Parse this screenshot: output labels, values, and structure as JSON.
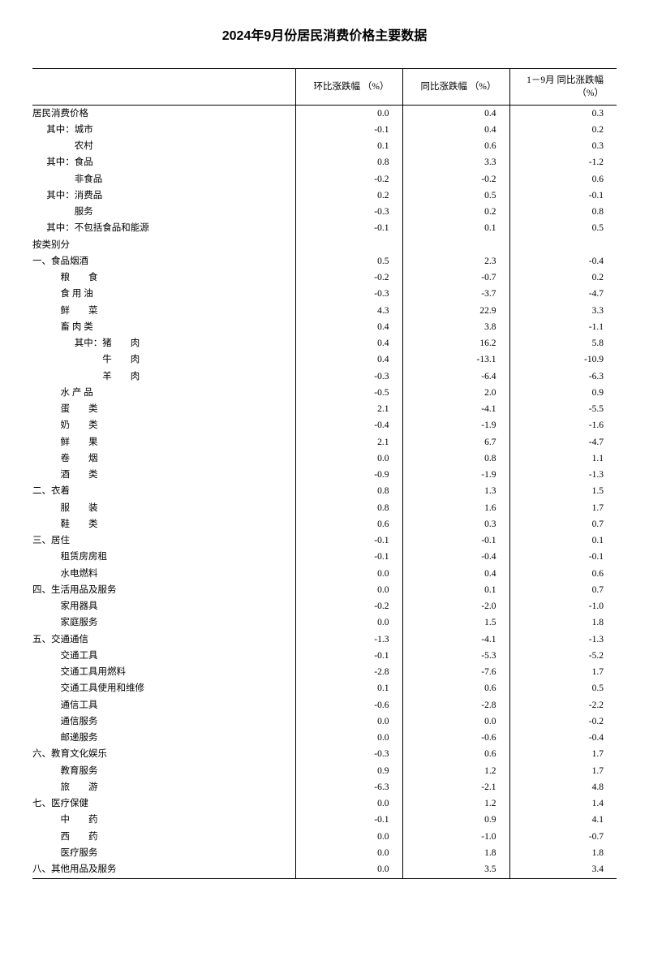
{
  "title": "2024年9月份居民消费价格主要数据",
  "columns": {
    "label": "",
    "mom": "环比涨跌幅\n（%）",
    "yoy": "同比涨跌幅\n（%）",
    "ytd": "1－9月\n同比涨跌幅\n（%）"
  },
  "rows": [
    {
      "label": "居民消费价格",
      "indent": 0,
      "mom": "0.0",
      "yoy": "0.4",
      "ytd": "0.3"
    },
    {
      "label": "其中：城市",
      "indent": 1,
      "mom": "-0.1",
      "yoy": "0.4",
      "ytd": "0.2"
    },
    {
      "label": "农村",
      "indent": 3,
      "mom": "0.1",
      "yoy": "0.6",
      "ytd": "0.3"
    },
    {
      "label": "其中：食品",
      "indent": 1,
      "mom": "0.8",
      "yoy": "3.3",
      "ytd": "-1.2"
    },
    {
      "label": "非食品",
      "indent": 3,
      "mom": "-0.2",
      "yoy": "-0.2",
      "ytd": "0.6"
    },
    {
      "label": "其中：消费品",
      "indent": 1,
      "mom": "0.2",
      "yoy": "0.5",
      "ytd": "-0.1"
    },
    {
      "label": "服务",
      "indent": 3,
      "mom": "-0.3",
      "yoy": "0.2",
      "ytd": "0.8"
    },
    {
      "label": "其中：不包括食品和能源",
      "indent": 1,
      "mom": "-0.1",
      "yoy": "0.1",
      "ytd": "0.5"
    },
    {
      "label": "按类别分",
      "indent": 0,
      "mom": "",
      "yoy": "",
      "ytd": ""
    },
    {
      "label": "一、食品烟酒",
      "indent": 0,
      "mom": "0.5",
      "yoy": "2.3",
      "ytd": "-0.4"
    },
    {
      "label": "粮　　食",
      "indent": 2,
      "mom": "-0.2",
      "yoy": "-0.7",
      "ytd": "0.2"
    },
    {
      "label": "食 用 油",
      "indent": 2,
      "mom": "-0.3",
      "yoy": "-3.7",
      "ytd": "-4.7"
    },
    {
      "label": "鲜　　菜",
      "indent": 2,
      "mom": "4.3",
      "yoy": "22.9",
      "ytd": "3.3"
    },
    {
      "label": "畜 肉 类",
      "indent": 2,
      "mom": "0.4",
      "yoy": "3.8",
      "ytd": "-1.1"
    },
    {
      "label": "其中：猪　　肉",
      "indent": 3,
      "mom": "0.4",
      "yoy": "16.2",
      "ytd": "5.8"
    },
    {
      "label": "牛　　肉",
      "indent": 5,
      "mom": "0.4",
      "yoy": "-13.1",
      "ytd": "-10.9"
    },
    {
      "label": "羊　　肉",
      "indent": 5,
      "mom": "-0.3",
      "yoy": "-6.4",
      "ytd": "-6.3"
    },
    {
      "label": "水 产 品",
      "indent": 2,
      "mom": "-0.5",
      "yoy": "2.0",
      "ytd": "0.9"
    },
    {
      "label": "蛋　　类",
      "indent": 2,
      "mom": "2.1",
      "yoy": "-4.1",
      "ytd": "-5.5"
    },
    {
      "label": "奶　　类",
      "indent": 2,
      "mom": "-0.4",
      "yoy": "-1.9",
      "ytd": "-1.6"
    },
    {
      "label": "鲜　　果",
      "indent": 2,
      "mom": "2.1",
      "yoy": "6.7",
      "ytd": "-4.7"
    },
    {
      "label": "卷　　烟",
      "indent": 2,
      "mom": "0.0",
      "yoy": "0.8",
      "ytd": "1.1"
    },
    {
      "label": "酒　　类",
      "indent": 2,
      "mom": "-0.9",
      "yoy": "-1.9",
      "ytd": "-1.3"
    },
    {
      "label": "二、衣着",
      "indent": 0,
      "mom": "0.8",
      "yoy": "1.3",
      "ytd": "1.5"
    },
    {
      "label": "服　　装",
      "indent": 2,
      "mom": "0.8",
      "yoy": "1.6",
      "ytd": "1.7"
    },
    {
      "label": "鞋　　类",
      "indent": 2,
      "mom": "0.6",
      "yoy": "0.3",
      "ytd": "0.7"
    },
    {
      "label": "三、居住",
      "indent": 0,
      "mom": "-0.1",
      "yoy": "-0.1",
      "ytd": "0.1"
    },
    {
      "label": "租赁房房租",
      "indent": 2,
      "mom": "-0.1",
      "yoy": "-0.4",
      "ytd": "-0.1"
    },
    {
      "label": "水电燃料",
      "indent": 2,
      "mom": "0.0",
      "yoy": "0.4",
      "ytd": "0.6"
    },
    {
      "label": "四、生活用品及服务",
      "indent": 0,
      "mom": "0.0",
      "yoy": "0.1",
      "ytd": "0.7"
    },
    {
      "label": "家用器具",
      "indent": 2,
      "mom": "-0.2",
      "yoy": "-2.0",
      "ytd": "-1.0"
    },
    {
      "label": "家庭服务",
      "indent": 2,
      "mom": "0.0",
      "yoy": "1.5",
      "ytd": "1.8"
    },
    {
      "label": "五、交通通信",
      "indent": 0,
      "mom": "-1.3",
      "yoy": "-4.1",
      "ytd": "-1.3"
    },
    {
      "label": "交通工具",
      "indent": 2,
      "mom": "-0.1",
      "yoy": "-5.3",
      "ytd": "-5.2"
    },
    {
      "label": "交通工具用燃料",
      "indent": 2,
      "mom": "-2.8",
      "yoy": "-7.6",
      "ytd": "1.7"
    },
    {
      "label": "交通工具使用和维修",
      "indent": 2,
      "mom": "0.1",
      "yoy": "0.6",
      "ytd": "0.5"
    },
    {
      "label": "通信工具",
      "indent": 2,
      "mom": "-0.6",
      "yoy": "-2.8",
      "ytd": "-2.2"
    },
    {
      "label": "通信服务",
      "indent": 2,
      "mom": "0.0",
      "yoy": "0.0",
      "ytd": "-0.2"
    },
    {
      "label": "邮递服务",
      "indent": 2,
      "mom": "0.0",
      "yoy": "-0.6",
      "ytd": "-0.4"
    },
    {
      "label": "六、教育文化娱乐",
      "indent": 0,
      "mom": "-0.3",
      "yoy": "0.6",
      "ytd": "1.7"
    },
    {
      "label": "教育服务",
      "indent": 2,
      "mom": "0.9",
      "yoy": "1.2",
      "ytd": "1.7"
    },
    {
      "label": "旅　　游",
      "indent": 2,
      "mom": "-6.3",
      "yoy": "-2.1",
      "ytd": "4.8"
    },
    {
      "label": "七、医疗保健",
      "indent": 0,
      "mom": "0.0",
      "yoy": "1.2",
      "ytd": "1.4"
    },
    {
      "label": "中　　药",
      "indent": 2,
      "mom": "-0.1",
      "yoy": "0.9",
      "ytd": "4.1"
    },
    {
      "label": "西　　药",
      "indent": 2,
      "mom": "0.0",
      "yoy": "-1.0",
      "ytd": "-0.7"
    },
    {
      "label": "医疗服务",
      "indent": 2,
      "mom": "0.0",
      "yoy": "1.8",
      "ytd": "1.8"
    },
    {
      "label": "八、其他用品及服务",
      "indent": 0,
      "mom": "0.0",
      "yoy": "3.5",
      "ytd": "3.4"
    }
  ],
  "style": {
    "indent_unit_em": 1.5,
    "font_size_body": 11.5,
    "font_size_title": 16,
    "background_color": "#ffffff",
    "text_color": "#000000",
    "border_color": "#000000"
  }
}
